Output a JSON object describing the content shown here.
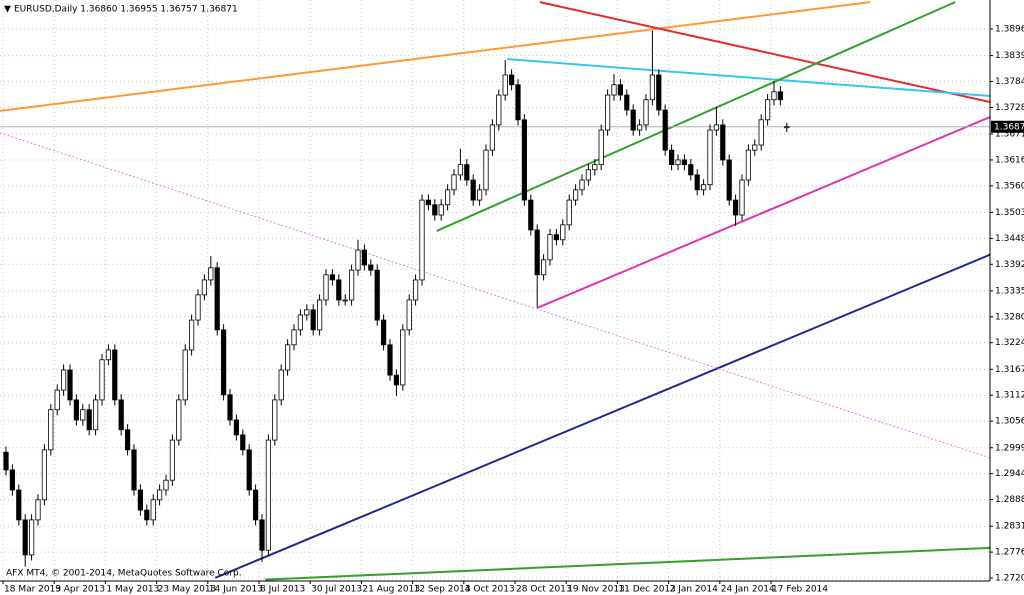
{
  "chart_data": {
    "type": "candlestick",
    "title": "EURUSD,Daily  1.36860 1.36955 1.36757 1.36871",
    "watermark": "AFX MT4, © 2001-2014, MetaQuotes Software Corp.",
    "grid": true,
    "up_color": "#ffffff",
    "down_color": "#000000",
    "categories": [
      "18 Mar 2013",
      null,
      null,
      null,
      null,
      null,
      null,
      null,
      "9 Apr 2013",
      null,
      null,
      null,
      null,
      null,
      null,
      null,
      "1 May 2013",
      null,
      null,
      null,
      null,
      null,
      null,
      null,
      "23 May 2013",
      null,
      null,
      null,
      null,
      null,
      null,
      null,
      "14 Jun 2013",
      null,
      null,
      null,
      null,
      null,
      null,
      null,
      "8 Jul 2013",
      null,
      null,
      null,
      null,
      null,
      null,
      null,
      "30 Jul 2013",
      null,
      null,
      null,
      null,
      null,
      null,
      null,
      "21 Aug 2013",
      null,
      null,
      null,
      null,
      null,
      null,
      null,
      "12 Sep 2013",
      null,
      null,
      null,
      null,
      null,
      null,
      null,
      "4 Oct 2013",
      null,
      null,
      null,
      null,
      null,
      null,
      null,
      "28 Oct 2013",
      null,
      null,
      null,
      null,
      null,
      null,
      null,
      "19 Nov 2013",
      null,
      null,
      null,
      null,
      null,
      null,
      null,
      "11 Dec 2013",
      null,
      null,
      null,
      null,
      null,
      null,
      null,
      "2 Jan 2014",
      null,
      null,
      null,
      null,
      null,
      null,
      null,
      "24 Jan 2014",
      null,
      null,
      null,
      null,
      null,
      null,
      null,
      "17 Feb 2014",
      null,
      null
    ],
    "open": [
      1.299,
      1.2952,
      1.2909,
      1.2845,
      1.277,
      1.2845,
      1.2888,
      1.2995,
      1.3081,
      1.3123,
      1.3166,
      1.3102,
      1.3059,
      1.3081,
      1.3038,
      1.3102,
      1.3188,
      1.3209,
      1.3102,
      1.3038,
      1.2995,
      1.2909,
      1.2866,
      1.2845,
      1.2888,
      1.2909,
      1.293,
      1.3016,
      1.3102,
      1.3209,
      1.3273,
      1.3327,
      1.3359,
      1.3385,
      1.3252,
      1.3113,
      1.3059,
      1.3027,
      1.2995,
      1.2909,
      1.2845,
      1.278,
      1.3016,
      1.3102,
      1.3166,
      1.322,
      1.3252,
      1.3284,
      1.3295,
      1.3252,
      1.3316,
      1.337,
      1.3359,
      1.3316,
      1.3316,
      1.338,
      1.3423,
      1.3391,
      1.338,
      1.3273,
      1.322,
      1.3155,
      1.3134,
      1.3252,
      1.3316,
      1.3359,
      1.353,
      1.352,
      1.3498,
      1.352,
      1.3552,
      1.3584,
      1.3606,
      1.3573,
      1.353,
      1.3552,
      1.3637,
      1.3691,
      1.3755,
      1.3798,
      1.3777,
      1.3702,
      1.353,
      1.3466,
      1.337,
      1.3402,
      1.3456,
      1.3445,
      1.3477,
      1.353,
      1.3552,
      1.3573,
      1.3595,
      1.3606,
      1.368,
      1.3755,
      1.3777,
      1.3755,
      1.3723,
      1.368,
      1.3691,
      1.3745,
      1.3798,
      1.3723,
      1.3637,
      1.3606,
      1.3616,
      1.3606,
      1.3584,
      1.3552,
      1.3563,
      1.368,
      1.3691,
      1.3616,
      1.353,
      1.3498,
      1.3573,
      1.3637,
      1.3648,
      1.3702,
      1.3745,
      1.3762,
      1.3686
    ],
    "high": [
      1.3002,
      1.2964,
      1.2921,
      1.2857,
      1.2857,
      1.29,
      1.3007,
      1.3093,
      1.3135,
      1.3178,
      1.3178,
      1.3114,
      1.3093,
      1.3093,
      1.3114,
      1.32,
      1.3221,
      1.3221,
      1.3114,
      1.305,
      1.3007,
      1.2921,
      1.2878,
      1.29,
      1.2921,
      1.2942,
      1.3028,
      1.3114,
      1.3221,
      1.3285,
      1.3339,
      1.3371,
      1.341,
      1.3397,
      1.3264,
      1.3125,
      1.3071,
      1.3039,
      1.3007,
      1.2921,
      1.2857,
      1.3028,
      1.3114,
      1.3178,
      1.3232,
      1.3264,
      1.3296,
      1.3307,
      1.3307,
      1.3328,
      1.3382,
      1.3382,
      1.3371,
      1.3328,
      1.3392,
      1.3445,
      1.3435,
      1.3403,
      1.3392,
      1.3285,
      1.3232,
      1.3167,
      1.3264,
      1.3328,
      1.3371,
      1.3542,
      1.3542,
      1.3532,
      1.3532,
      1.3564,
      1.3596,
      1.364,
      1.3618,
      1.3585,
      1.3564,
      1.3649,
      1.3703,
      1.3767,
      1.383,
      1.381,
      1.3789,
      1.3714,
      1.3542,
      1.3478,
      1.3414,
      1.3468,
      1.3468,
      1.3489,
      1.3542,
      1.3564,
      1.3585,
      1.3607,
      1.3618,
      1.3692,
      1.3767,
      1.38,
      1.3789,
      1.3767,
      1.3735,
      1.3703,
      1.3757,
      1.3893,
      1.381,
      1.3735,
      1.3649,
      1.3628,
      1.3628,
      1.3618,
      1.3596,
      1.3575,
      1.3692,
      1.373,
      1.3703,
      1.3628,
      1.3542,
      1.3585,
      1.3649,
      1.366,
      1.3714,
      1.3757,
      1.3785,
      1.3774,
      1.36955
    ],
    "low": [
      1.294,
      1.2897,
      1.2833,
      1.2745,
      1.2758,
      1.2833,
      1.2876,
      1.2983,
      1.3069,
      1.3111,
      1.309,
      1.3047,
      1.3047,
      1.3026,
      1.3026,
      1.309,
      1.3176,
      1.309,
      1.3026,
      1.2983,
      1.2897,
      1.2854,
      1.2833,
      1.2833,
      1.2876,
      1.2897,
      1.2918,
      1.3004,
      1.309,
      1.3197,
      1.3261,
      1.3315,
      1.3347,
      1.324,
      1.3101,
      1.3047,
      1.3015,
      1.2983,
      1.2897,
      1.2833,
      1.2755,
      1.2768,
      1.3004,
      1.309,
      1.3154,
      1.3208,
      1.324,
      1.3272,
      1.324,
      1.324,
      1.3304,
      1.3347,
      1.3304,
      1.3304,
      1.3304,
      1.3368,
      1.3379,
      1.3368,
      1.3261,
      1.3208,
      1.3143,
      1.311,
      1.3122,
      1.324,
      1.3304,
      1.3347,
      1.3508,
      1.3486,
      1.3486,
      1.3508,
      1.354,
      1.3572,
      1.3561,
      1.3518,
      1.3518,
      1.354,
      1.3625,
      1.3679,
      1.3743,
      1.3765,
      1.369,
      1.3518,
      1.3454,
      1.33,
      1.3358,
      1.339,
      1.3433,
      1.3433,
      1.3465,
      1.3518,
      1.354,
      1.3561,
      1.3583,
      1.3594,
      1.3668,
      1.3743,
      1.3743,
      1.3711,
      1.3668,
      1.3668,
      1.3679,
      1.3733,
      1.3711,
      1.3625,
      1.3594,
      1.3594,
      1.3594,
      1.3572,
      1.354,
      1.354,
      1.3551,
      1.3668,
      1.3604,
      1.3518,
      1.3475,
      1.3486,
      1.3561,
      1.3625,
      1.3636,
      1.369,
      1.3733,
      1.3733,
      1.36757
    ],
    "close": [
      1.2952,
      1.2909,
      1.2845,
      1.277,
      1.2845,
      1.2888,
      1.2995,
      1.3081,
      1.3123,
      1.3166,
      1.3102,
      1.3059,
      1.3081,
      1.3038,
      1.3102,
      1.3188,
      1.3209,
      1.3102,
      1.3038,
      1.2995,
      1.2909,
      1.2866,
      1.2845,
      1.2888,
      1.2909,
      1.293,
      1.3016,
      1.3102,
      1.3209,
      1.3273,
      1.3327,
      1.3359,
      1.3385,
      1.3252,
      1.3113,
      1.3059,
      1.3027,
      1.2995,
      1.2909,
      1.2845,
      1.278,
      1.3016,
      1.3102,
      1.3166,
      1.322,
      1.3252,
      1.3284,
      1.3295,
      1.3252,
      1.3316,
      1.337,
      1.3359,
      1.3316,
      1.3316,
      1.338,
      1.3423,
      1.3391,
      1.338,
      1.3273,
      1.322,
      1.3155,
      1.3134,
      1.3252,
      1.3316,
      1.3359,
      1.353,
      1.352,
      1.3498,
      1.352,
      1.3552,
      1.3584,
      1.3606,
      1.3573,
      1.353,
      1.3552,
      1.3637,
      1.3691,
      1.3755,
      1.3798,
      1.3777,
      1.3702,
      1.353,
      1.3466,
      1.337,
      1.3402,
      1.3456,
      1.3445,
      1.3477,
      1.353,
      1.3552,
      1.3573,
      1.3595,
      1.3606,
      1.368,
      1.3755,
      1.3777,
      1.3755,
      1.3723,
      1.368,
      1.3691,
      1.3745,
      1.3798,
      1.3723,
      1.3637,
      1.3606,
      1.3616,
      1.3606,
      1.3584,
      1.3552,
      1.3563,
      1.368,
      1.3691,
      1.3616,
      1.353,
      1.3498,
      1.3573,
      1.3637,
      1.3648,
      1.3702,
      1.3745,
      1.3762,
      1.3745,
      1.36871
    ],
    "last_price": 1.36871,
    "ylim": [
      1.27141,
      1.39586
    ],
    "yticks": [
      1.27205,
      {
        "value": 1.2776,
        "label": "1.27760"
      },
      1.28315,
      1.28885,
      {
        "value": 1.2944,
        "label": "1.29440"
      },
      1.29995,
      1.30565,
      {
        "value": 1.3112,
        "label": "1.31120"
      },
      1.31675,
      1.32245,
      {
        "value": 1.328,
        "label": "1.32800"
      },
      1.33355,
      1.33925,
      {
        "value": 1.3448,
        "label": "1.34480"
      },
      1.35035,
      1.35605,
      {
        "value": 1.3616,
        "label": "1.36160"
      },
      1.36715,
      1.37285,
      {
        "value": 1.3784,
        "label": "1.37840"
      },
      1.38395,
      1.38965
    ],
    "trendlines": [
      {
        "color": "#ff9933",
        "dash": false,
        "x": [
          -0.94,
          135
        ],
        "y": [
          1.3721,
          1.3954
        ]
      },
      {
        "color": "#e8282b",
        "dash": false,
        "x": [
          83.4,
          153.75
        ],
        "y": [
          1.3954,
          1.374
        ]
      },
      {
        "color": "#33c6f0",
        "dash": false,
        "x": [
          78.3,
          153.75
        ],
        "y": [
          1.3832,
          1.3753
        ]
      },
      {
        "color": "#33a02c",
        "dash": false,
        "x": [
          67.3,
          148.3
        ],
        "y": [
          1.3464,
          1.3954
        ]
      },
      {
        "color": "#e033b0",
        "dash": false,
        "x": [
          83,
          153.75
        ],
        "y": [
          1.3299,
          1.3708
        ]
      },
      {
        "color": "#1f2a8c",
        "dash": false,
        "x": [
          32.7,
          153.75
        ],
        "y": [
          1.2721,
          1.3413
        ]
      },
      {
        "color": "#33a02c",
        "dash": false,
        "x": [
          40.5,
          153.75
        ],
        "y": [
          1.2717,
          1.2785
        ]
      },
      {
        "color": "#e57be0",
        "dash": true,
        "x": [
          -0.94,
          153.75
        ],
        "y": [
          1.3674,
          1.2978
        ]
      }
    ]
  }
}
